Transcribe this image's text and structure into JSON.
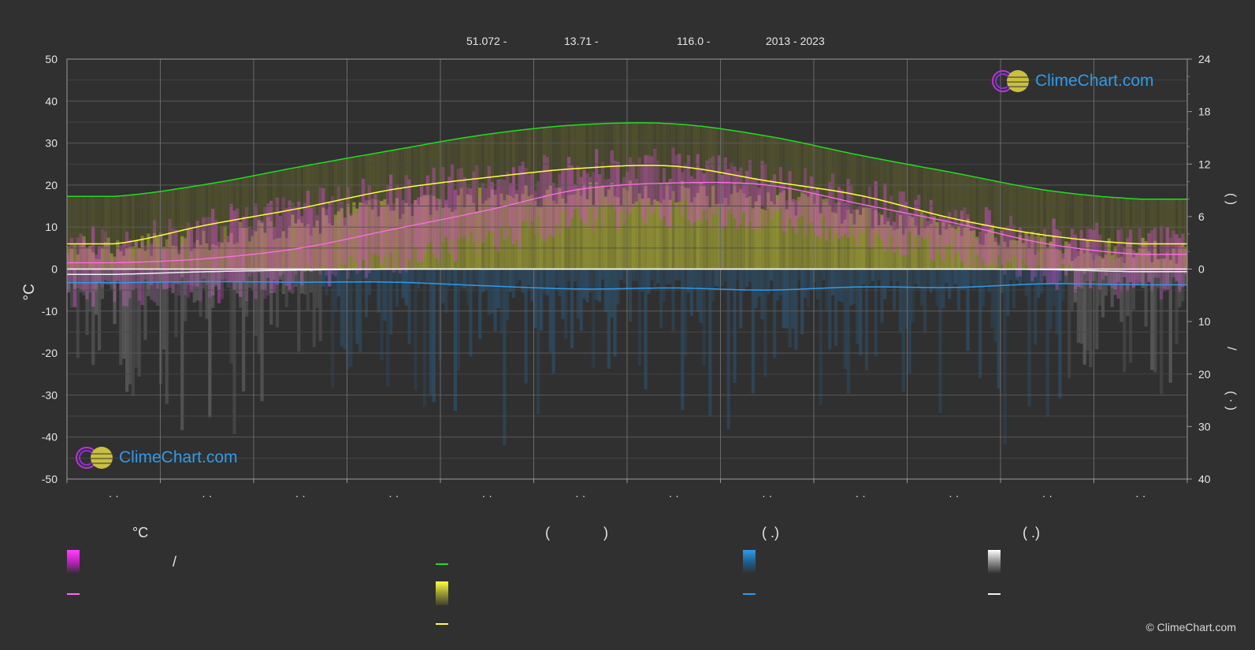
{
  "header": {
    "lat": "51.072 -",
    "lon": "13.71 -",
    "elev": "116.0 -",
    "years": "2013 - 2023"
  },
  "logo": {
    "text": "ClimeChart.com"
  },
  "copyright": "© ClimeChart.com",
  "legend": {
    "col1_title": "°C",
    "col1_slash": "/",
    "col2_title_paren_left": "(",
    "col2_title_paren_right": ")",
    "col3_title": "(   .)",
    "col4_title": "(   .)"
  },
  "colors": {
    "background": "#303030",
    "max_temp_line": "#ffff40",
    "mean_temp_line": "#ff6ee8",
    "daylight_line": "#22dd22",
    "sunshine_fill": "#c8c83a",
    "temp_range_fill": "#e040e0",
    "precip_line": "#2f9bea",
    "snow_line": "#f0f0f0"
  },
  "chart_data": {
    "type": "line",
    "title": "",
    "xlabel": "",
    "ylabel": "°C",
    "ylim": [
      -50,
      50
    ],
    "yticks": [
      50,
      40,
      30,
      20,
      10,
      0,
      -10,
      -20,
      -30,
      -40,
      -50
    ],
    "right_axis_upper": {
      "ylim": [
        0,
        24
      ],
      "ticks": [
        24,
        18,
        12,
        6,
        0
      ]
    },
    "right_axis_lower": {
      "ylim": [
        0,
        40
      ],
      "ticks": [
        10,
        20,
        30,
        40
      ]
    },
    "right_axis_label_upper": "(   )",
    "right_axis_label_lower": "/",
    "right_axis_label_lower2": "( ·  )",
    "month_labels": [
      "· ·",
      "· ·",
      "· ·",
      "· ·",
      "· ·",
      "· ·",
      "· ·",
      "· ·",
      "· ·",
      "· ·",
      "· ·",
      "· ·"
    ],
    "x_months": [
      1,
      2,
      3,
      4,
      5,
      6,
      7,
      8,
      9,
      10,
      11,
      12
    ],
    "series": [
      {
        "values": [
          6.0,
          10.5,
          14.5,
          19.0,
          21.8,
          24.0,
          24.5,
          21.0,
          17.5,
          12.0,
          8.0,
          6.0
        ]
      },
      {
        "values": [
          1.5,
          2.5,
          5.0,
          9.5,
          14.0,
          19.0,
          20.5,
          20.0,
          15.5,
          11.0,
          6.0,
          3.5
        ]
      },
      {
        "axis": "daylight",
        "values": [
          8.3,
          9.7,
          11.7,
          13.6,
          15.4,
          16.5,
          16.6,
          15.2,
          13.0,
          11.0,
          9.0,
          8.0
        ]
      },
      {
        "axis": "sunshine",
        "values": [
          2.0,
          3.0,
          4.5,
          6.5,
          7.5,
          8.0,
          8.0,
          7.5,
          5.5,
          4.0,
          2.0,
          1.5
        ]
      },
      {
        "axis": "precip",
        "values": [
          2.6,
          2.4,
          2.5,
          2.5,
          3.2,
          3.8,
          3.6,
          4.0,
          3.4,
          3.5,
          2.8,
          3.0
        ]
      },
      {
        "axis": "snow",
        "values": [
          1.0,
          0.5,
          0.2,
          0.0,
          0.0,
          0.0,
          0.0,
          0.0,
          0.0,
          0.0,
          0.1,
          0.5
        ]
      }
    ]
  }
}
